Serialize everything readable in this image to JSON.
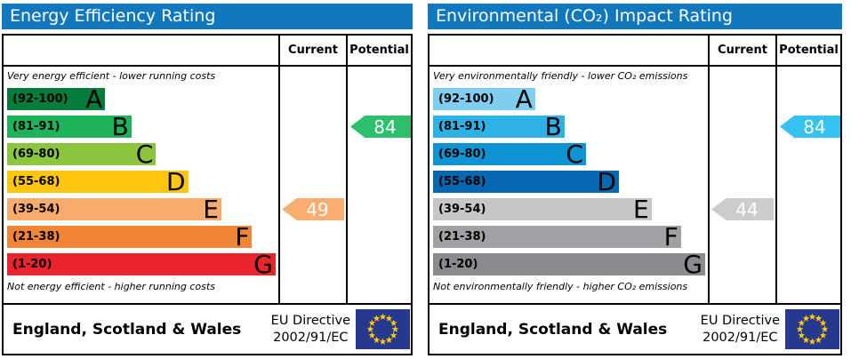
{
  "theme": {
    "header_bg": "#1278be",
    "border": "#000000",
    "eu_flag_bg": "#27388f",
    "eu_star": "#ffcc00"
  },
  "panels": [
    {
      "title": "Energy Efficiency Rating",
      "columns": {
        "current": "Current",
        "potential": "Potential"
      },
      "top_note": "Very energy efficient - lower running costs",
      "bottom_note": "Not energy efficient - higher running costs",
      "bands": [
        {
          "range": "(92-100)",
          "letter": "A",
          "color": "#067c3c",
          "width_pct": 36.5
        },
        {
          "range": "(81-91)",
          "letter": "B",
          "color": "#1eb35a",
          "width_pct": 46.3
        },
        {
          "range": "(69-80)",
          "letter": "C",
          "color": "#8cc63f",
          "width_pct": 55.4
        },
        {
          "range": "(55-68)",
          "letter": "D",
          "color": "#fdc60c",
          "width_pct": 67.4
        },
        {
          "range": "(39-54)",
          "letter": "E",
          "color": "#f7ac6d",
          "width_pct": 79.8
        },
        {
          "range": "(21-38)",
          "letter": "F",
          "color": "#ef8535",
          "width_pct": 91.2
        },
        {
          "range": "(1-20)",
          "letter": "G",
          "color": "#e9242d",
          "width_pct": 100
        }
      ],
      "current": {
        "value": "49",
        "band_index": 4,
        "color": "#f9ad6e"
      },
      "potential": {
        "value": "84",
        "band_index": 1,
        "color": "#2ebf6d"
      },
      "footer": {
        "region": "England, Scotland & Wales",
        "directive_line1": "EU Directive",
        "directive_line2": "2002/91/EC"
      }
    },
    {
      "title": "Environmental (CO₂) Impact Rating",
      "columns": {
        "current": "Current",
        "potential": "Potential"
      },
      "top_note": "Very environmentally friendly - lower CO₂ emissions",
      "bottom_note": "Not environmentally friendly - higher CO₂ emissions",
      "bands": [
        {
          "range": "(92-100)",
          "letter": "A",
          "color": "#7fceef",
          "width_pct": 37.5
        },
        {
          "range": "(81-91)",
          "letter": "B",
          "color": "#2eb2e6",
          "width_pct": 48.3
        },
        {
          "range": "(69-80)",
          "letter": "C",
          "color": "#0f93d2",
          "width_pct": 56.2
        },
        {
          "range": "(55-68)",
          "letter": "D",
          "color": "#0767b1",
          "width_pct": 68.3
        },
        {
          "range": "(39-54)",
          "letter": "E",
          "color": "#c6c7c9",
          "width_pct": 80.3
        },
        {
          "range": "(21-38)",
          "letter": "F",
          "color": "#9fa1a4",
          "width_pct": 91.1
        },
        {
          "range": "(1-20)",
          "letter": "G",
          "color": "#898b8e",
          "width_pct": 100
        }
      ],
      "current": {
        "value": "44",
        "band_index": 4,
        "color": "#cbcccd"
      },
      "potential": {
        "value": "84",
        "band_index": 1,
        "color": "#35c2f0"
      },
      "footer": {
        "region": "England, Scotland & Wales",
        "directive_line1": "EU Directive",
        "directive_line2": "2002/91/EC"
      }
    }
  ],
  "chart_data": [
    {
      "type": "bar",
      "title": "Energy Efficiency Rating",
      "categories": [
        "A (92-100)",
        "B (81-91)",
        "C (69-80)",
        "D (55-68)",
        "E (39-54)",
        "F (21-38)",
        "G (1-20)"
      ],
      "scale_range": [
        1,
        100
      ],
      "current_rating": 49,
      "current_band": "E",
      "potential_rating": 84,
      "potential_band": "B",
      "region": "England, Scotland & Wales",
      "directive": "EU Directive 2002/91/EC"
    },
    {
      "type": "bar",
      "title": "Environmental (CO₂) Impact Rating",
      "categories": [
        "A (92-100)",
        "B (81-91)",
        "C (69-80)",
        "D (55-68)",
        "E (39-54)",
        "F (21-38)",
        "G (1-20)"
      ],
      "scale_range": [
        1,
        100
      ],
      "current_rating": 44,
      "current_band": "E",
      "potential_rating": 84,
      "potential_band": "B",
      "region": "England, Scotland & Wales",
      "directive": "EU Directive 2002/91/EC"
    }
  ]
}
